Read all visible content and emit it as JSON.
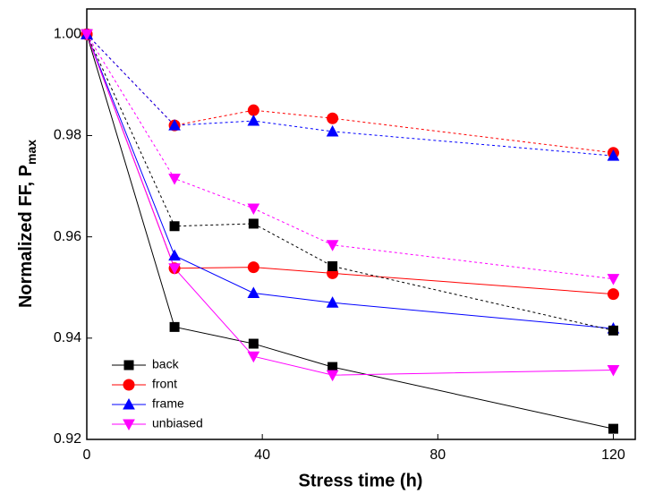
{
  "chart_data": {
    "type": "line",
    "xlabel": "Stress time (h)",
    "ylabel": "Normalized FF, P",
    "ylabel_sub": "max",
    "x": [
      0,
      20,
      38,
      56,
      120
    ],
    "xlim": [
      0,
      125
    ],
    "xticks": [
      0,
      40,
      80,
      120
    ],
    "ylim": [
      0.92,
      1.005
    ],
    "yticks": [
      {
        "value": 0.92,
        "label": "0.92"
      },
      {
        "value": 0.94,
        "label": "0.94"
      },
      {
        "value": 0.96,
        "label": "0.96"
      },
      {
        "value": 0.98,
        "label": "0.98"
      },
      {
        "value": 1,
        "label": "1.00"
      }
    ],
    "legend": "lower left",
    "series": [
      {
        "name": "back",
        "color": "#000000",
        "marker": "square",
        "dash": false,
        "values": [
          1.0,
          0.9422,
          0.9389,
          0.9343,
          0.9221
        ]
      },
      {
        "name": "front",
        "color": "#ff0000",
        "marker": "circle",
        "dash": false,
        "values": [
          1.0,
          0.9538,
          0.954,
          0.9528,
          0.9487
        ]
      },
      {
        "name": "frame",
        "color": "#0000ff",
        "marker": "triangle-up",
        "dash": false,
        "values": [
          1.0,
          0.9563,
          0.9489,
          0.947,
          0.9419
        ]
      },
      {
        "name": "unbiased",
        "color": "#ff00ff",
        "marker": "triangle-down",
        "dash": false,
        "values": [
          1.0,
          0.9538,
          0.9364,
          0.9327,
          0.9337
        ]
      },
      {
        "color": "#000000",
        "marker": "square",
        "dash": true,
        "values": [
          1.0,
          0.9621,
          0.9626,
          0.9542,
          0.9415
        ]
      },
      {
        "color": "#ff0000",
        "marker": "circle",
        "dash": true,
        "values": [
          1.0,
          0.982,
          0.985,
          0.9834,
          0.9766
        ]
      },
      {
        "color": "#0000ff",
        "marker": "triangle-up",
        "dash": true,
        "values": [
          1.0,
          0.982,
          0.9829,
          0.9808,
          0.976
        ]
      },
      {
        "color": "#ff00ff",
        "marker": "triangle-down",
        "dash": true,
        "values": [
          1.0,
          0.9715,
          0.9656,
          0.9584,
          0.9517
        ]
      }
    ]
  }
}
